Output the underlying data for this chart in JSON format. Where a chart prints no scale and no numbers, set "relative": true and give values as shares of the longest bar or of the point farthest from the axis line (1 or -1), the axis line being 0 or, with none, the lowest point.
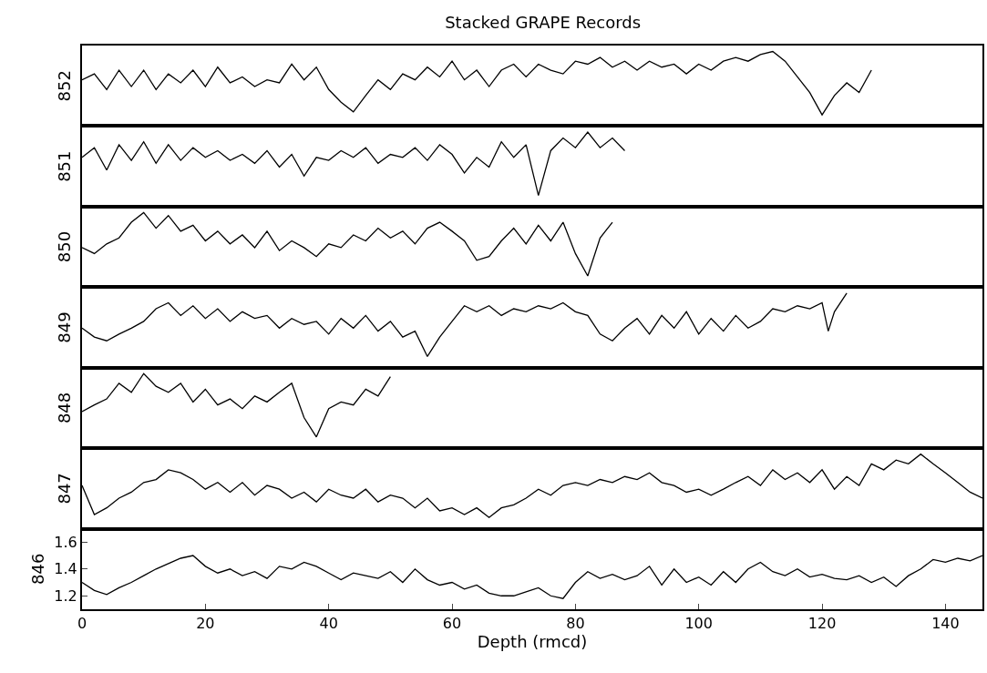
{
  "chart_data": [
    {
      "type": "line",
      "title": "Stacked GRAPE Records",
      "ylabel": "852",
      "relative": true,
      "tick_labels": false,
      "xlim": [
        0,
        146
      ],
      "x": [
        0,
        2,
        4,
        6,
        8,
        10,
        12,
        14,
        16,
        18,
        20,
        22,
        24,
        26,
        28,
        30,
        32,
        34,
        36,
        38,
        40,
        42,
        44,
        46,
        48,
        50,
        52,
        54,
        56,
        58,
        60,
        62,
        64,
        66,
        68,
        70,
        72,
        74,
        76,
        78,
        80,
        82,
        84,
        86,
        88,
        90,
        92,
        94,
        96,
        98,
        100,
        102,
        104,
        106,
        108,
        110,
        112,
        114,
        116,
        118,
        120,
        122,
        124,
        126,
        128
      ],
      "series": [
        {
          "color": "#000000",
          "values": [
            0.62,
            0.7,
            0.49,
            0.75,
            0.53,
            0.75,
            0.49,
            0.7,
            0.58,
            0.75,
            0.53,
            0.79,
            0.58,
            0.66,
            0.53,
            0.62,
            0.58,
            0.83,
            0.62,
            0.79,
            0.49,
            0.32,
            0.19,
            0.41,
            0.62,
            0.49,
            0.7,
            0.62,
            0.79,
            0.66,
            0.87,
            0.62,
            0.75,
            0.53,
            0.75,
            0.83,
            0.66,
            0.83,
            0.75,
            0.7,
            0.87,
            0.83,
            0.92,
            0.79,
            0.87,
            0.75,
            0.87,
            0.79,
            0.83,
            0.7,
            0.83,
            0.75,
            0.87,
            0.92,
            0.87,
            0.96,
            1,
            0.87,
            0.66,
            0.45,
            0.15,
            0.41,
            0.58,
            0.45,
            0.75
          ]
        }
      ]
    },
    {
      "type": "line",
      "ylabel": "851",
      "relative": true,
      "tick_labels": false,
      "xlim": [
        0,
        146
      ],
      "x": [
        0,
        2,
        4,
        6,
        8,
        10,
        12,
        14,
        16,
        18,
        20,
        22,
        24,
        26,
        28,
        30,
        32,
        34,
        36,
        38,
        40,
        42,
        44,
        46,
        48,
        50,
        52,
        54,
        56,
        58,
        60,
        62,
        64,
        66,
        68,
        70,
        72,
        74,
        76,
        78,
        80,
        82,
        84,
        86,
        88
      ],
      "series": [
        {
          "color": "#000000",
          "values": [
            0.66,
            0.79,
            0.49,
            0.83,
            0.62,
            0.87,
            0.58,
            0.83,
            0.62,
            0.79,
            0.66,
            0.75,
            0.62,
            0.7,
            0.58,
            0.75,
            0.53,
            0.7,
            0.41,
            0.66,
            0.62,
            0.75,
            0.66,
            0.79,
            0.58,
            0.7,
            0.66,
            0.79,
            0.62,
            0.83,
            0.7,
            0.45,
            0.66,
            0.53,
            0.87,
            0.66,
            0.83,
            0.15,
            0.75,
            0.92,
            0.79,
            1,
            0.79,
            0.92,
            0.75
          ]
        }
      ]
    },
    {
      "type": "line",
      "ylabel": "850",
      "relative": true,
      "tick_labels": false,
      "xlim": [
        0,
        146
      ],
      "x": [
        0,
        2,
        4,
        6,
        8,
        10,
        12,
        14,
        16,
        18,
        20,
        22,
        24,
        26,
        28,
        30,
        32,
        34,
        36,
        38,
        40,
        42,
        44,
        46,
        48,
        50,
        52,
        54,
        56,
        58,
        60,
        62,
        64,
        66,
        68,
        70,
        72,
        74,
        76,
        78,
        80,
        82,
        84,
        86
      ],
      "series": [
        {
          "color": "#000000",
          "values": [
            0.53,
            0.45,
            0.58,
            0.66,
            0.87,
            1,
            0.79,
            0.96,
            0.75,
            0.83,
            0.62,
            0.75,
            0.58,
            0.7,
            0.53,
            0.75,
            0.49,
            0.62,
            0.53,
            0.41,
            0.58,
            0.53,
            0.7,
            0.62,
            0.79,
            0.66,
            0.75,
            0.58,
            0.79,
            0.87,
            0.75,
            0.62,
            0.36,
            0.41,
            0.62,
            0.79,
            0.58,
            0.83,
            0.62,
            0.87,
            0.45,
            0.15,
            0.66,
            0.87
          ]
        }
      ]
    },
    {
      "type": "line",
      "ylabel": "849",
      "relative": true,
      "tick_labels": false,
      "xlim": [
        0,
        146
      ],
      "x": [
        0,
        2,
        4,
        6,
        8,
        10,
        12,
        14,
        16,
        18,
        20,
        22,
        24,
        26,
        28,
        30,
        32,
        34,
        36,
        38,
        40,
        42,
        44,
        46,
        48,
        50,
        52,
        54,
        56,
        58,
        60,
        62,
        64,
        66,
        68,
        70,
        72,
        74,
        76,
        78,
        80,
        82,
        84,
        86,
        88,
        90,
        92,
        94,
        96,
        98,
        100,
        102,
        104,
        106,
        108,
        110,
        112,
        114,
        116,
        118,
        120,
        121,
        122,
        124
      ],
      "series": [
        {
          "color": "#000000",
          "values": [
            0.53,
            0.41,
            0.36,
            0.45,
            0.53,
            0.62,
            0.79,
            0.87,
            0.7,
            0.83,
            0.66,
            0.79,
            0.62,
            0.75,
            0.66,
            0.7,
            0.53,
            0.66,
            0.58,
            0.62,
            0.45,
            0.66,
            0.53,
            0.7,
            0.49,
            0.62,
            0.41,
            0.49,
            0.15,
            0.41,
            0.62,
            0.83,
            0.75,
            0.83,
            0.7,
            0.79,
            0.75,
            0.83,
            0.79,
            0.87,
            0.75,
            0.7,
            0.45,
            0.36,
            0.53,
            0.66,
            0.45,
            0.7,
            0.53,
            0.75,
            0.45,
            0.66,
            0.49,
            0.7,
            0.53,
            0.62,
            0.79,
            0.75,
            0.83,
            0.79,
            0.87,
            0.49,
            0.75,
            1
          ]
        }
      ]
    },
    {
      "type": "line",
      "ylabel": "848",
      "relative": true,
      "tick_labels": false,
      "xlim": [
        0,
        146
      ],
      "x": [
        0,
        2,
        4,
        6,
        8,
        10,
        12,
        14,
        16,
        18,
        20,
        22,
        24,
        26,
        28,
        30,
        32,
        34,
        36,
        38,
        40,
        42,
        44,
        46,
        48,
        50
      ],
      "series": [
        {
          "color": "#000000",
          "values": [
            0.49,
            0.58,
            0.66,
            0.87,
            0.75,
            1,
            0.83,
            0.75,
            0.87,
            0.62,
            0.79,
            0.58,
            0.66,
            0.53,
            0.7,
            0.62,
            0.75,
            0.87,
            0.41,
            0.15,
            0.53,
            0.62,
            0.58,
            0.79,
            0.7,
            0.96
          ]
        }
      ]
    },
    {
      "type": "line",
      "ylabel": "847",
      "relative": true,
      "tick_labels": false,
      "xlim": [
        0,
        146
      ],
      "x": [
        0,
        2,
        4,
        6,
        8,
        10,
        12,
        14,
        16,
        18,
        20,
        22,
        24,
        26,
        28,
        30,
        32,
        34,
        36,
        38,
        40,
        42,
        44,
        46,
        48,
        50,
        52,
        54,
        56,
        58,
        60,
        62,
        64,
        66,
        68,
        70,
        72,
        74,
        76,
        78,
        80,
        82,
        84,
        86,
        88,
        90,
        92,
        94,
        96,
        98,
        100,
        102,
        104,
        106,
        108,
        110,
        112,
        114,
        116,
        118,
        120,
        122,
        124,
        126,
        128,
        130,
        132,
        134,
        136,
        138,
        140,
        142,
        144,
        146
      ],
      "series": [
        {
          "color": "#000000",
          "values": [
            0.58,
            0.19,
            0.28,
            0.41,
            0.49,
            0.62,
            0.66,
            0.79,
            0.75,
            0.66,
            0.53,
            0.62,
            0.49,
            0.62,
            0.45,
            0.58,
            0.53,
            0.41,
            0.49,
            0.36,
            0.53,
            0.45,
            0.41,
            0.53,
            0.36,
            0.45,
            0.41,
            0.28,
            0.41,
            0.24,
            0.28,
            0.19,
            0.28,
            0.15,
            0.28,
            0.32,
            0.41,
            0.53,
            0.45,
            0.58,
            0.62,
            0.58,
            0.66,
            0.62,
            0.7,
            0.66,
            0.75,
            0.62,
            0.58,
            0.49,
            0.53,
            0.45,
            0.53,
            0.62,
            0.7,
            0.58,
            0.79,
            0.66,
            0.75,
            0.62,
            0.79,
            0.53,
            0.7,
            0.58,
            0.87,
            0.79,
            0.92,
            0.87,
            1,
            0.87,
            0.75,
            0.62,
            0.49,
            0.41
          ]
        }
      ]
    },
    {
      "type": "line",
      "ylabel": "846",
      "xlabel": "Depth (rmcd)",
      "xlim": [
        0,
        146
      ],
      "xticks": [
        0,
        20,
        40,
        60,
        80,
        100,
        120,
        140
      ],
      "ylim": [
        1.1,
        1.7
      ],
      "yticks": [
        1.2,
        1.4,
        1.6
      ],
      "x": [
        0,
        2,
        4,
        6,
        8,
        10,
        12,
        14,
        16,
        18,
        20,
        22,
        24,
        26,
        28,
        30,
        32,
        34,
        36,
        38,
        40,
        42,
        44,
        46,
        48,
        50,
        52,
        54,
        56,
        58,
        60,
        62,
        64,
        66,
        68,
        70,
        72,
        74,
        76,
        78,
        80,
        82,
        84,
        86,
        88,
        90,
        92,
        94,
        96,
        98,
        100,
        102,
        104,
        106,
        108,
        110,
        112,
        114,
        116,
        118,
        120,
        122,
        124,
        126,
        128,
        130,
        132,
        134,
        136,
        138,
        140,
        142,
        144,
        146
      ],
      "series": [
        {
          "color": "#000000",
          "values": [
            1.3,
            1.24,
            1.21,
            1.26,
            1.3,
            1.35,
            1.4,
            1.44,
            1.48,
            1.5,
            1.42,
            1.37,
            1.4,
            1.35,
            1.38,
            1.33,
            1.42,
            1.4,
            1.45,
            1.42,
            1.37,
            1.32,
            1.37,
            1.35,
            1.33,
            1.38,
            1.3,
            1.4,
            1.32,
            1.28,
            1.3,
            1.25,
            1.28,
            1.22,
            1.2,
            1.2,
            1.23,
            1.26,
            1.2,
            1.18,
            1.3,
            1.38,
            1.33,
            1.36,
            1.32,
            1.35,
            1.42,
            1.28,
            1.4,
            1.3,
            1.34,
            1.28,
            1.38,
            1.3,
            1.4,
            1.45,
            1.38,
            1.35,
            1.4,
            1.34,
            1.36,
            1.33,
            1.32,
            1.35,
            1.3,
            1.34,
            1.27,
            1.35,
            1.4,
            1.47,
            1.45,
            1.48,
            1.46,
            1.5
          ]
        }
      ]
    }
  ]
}
